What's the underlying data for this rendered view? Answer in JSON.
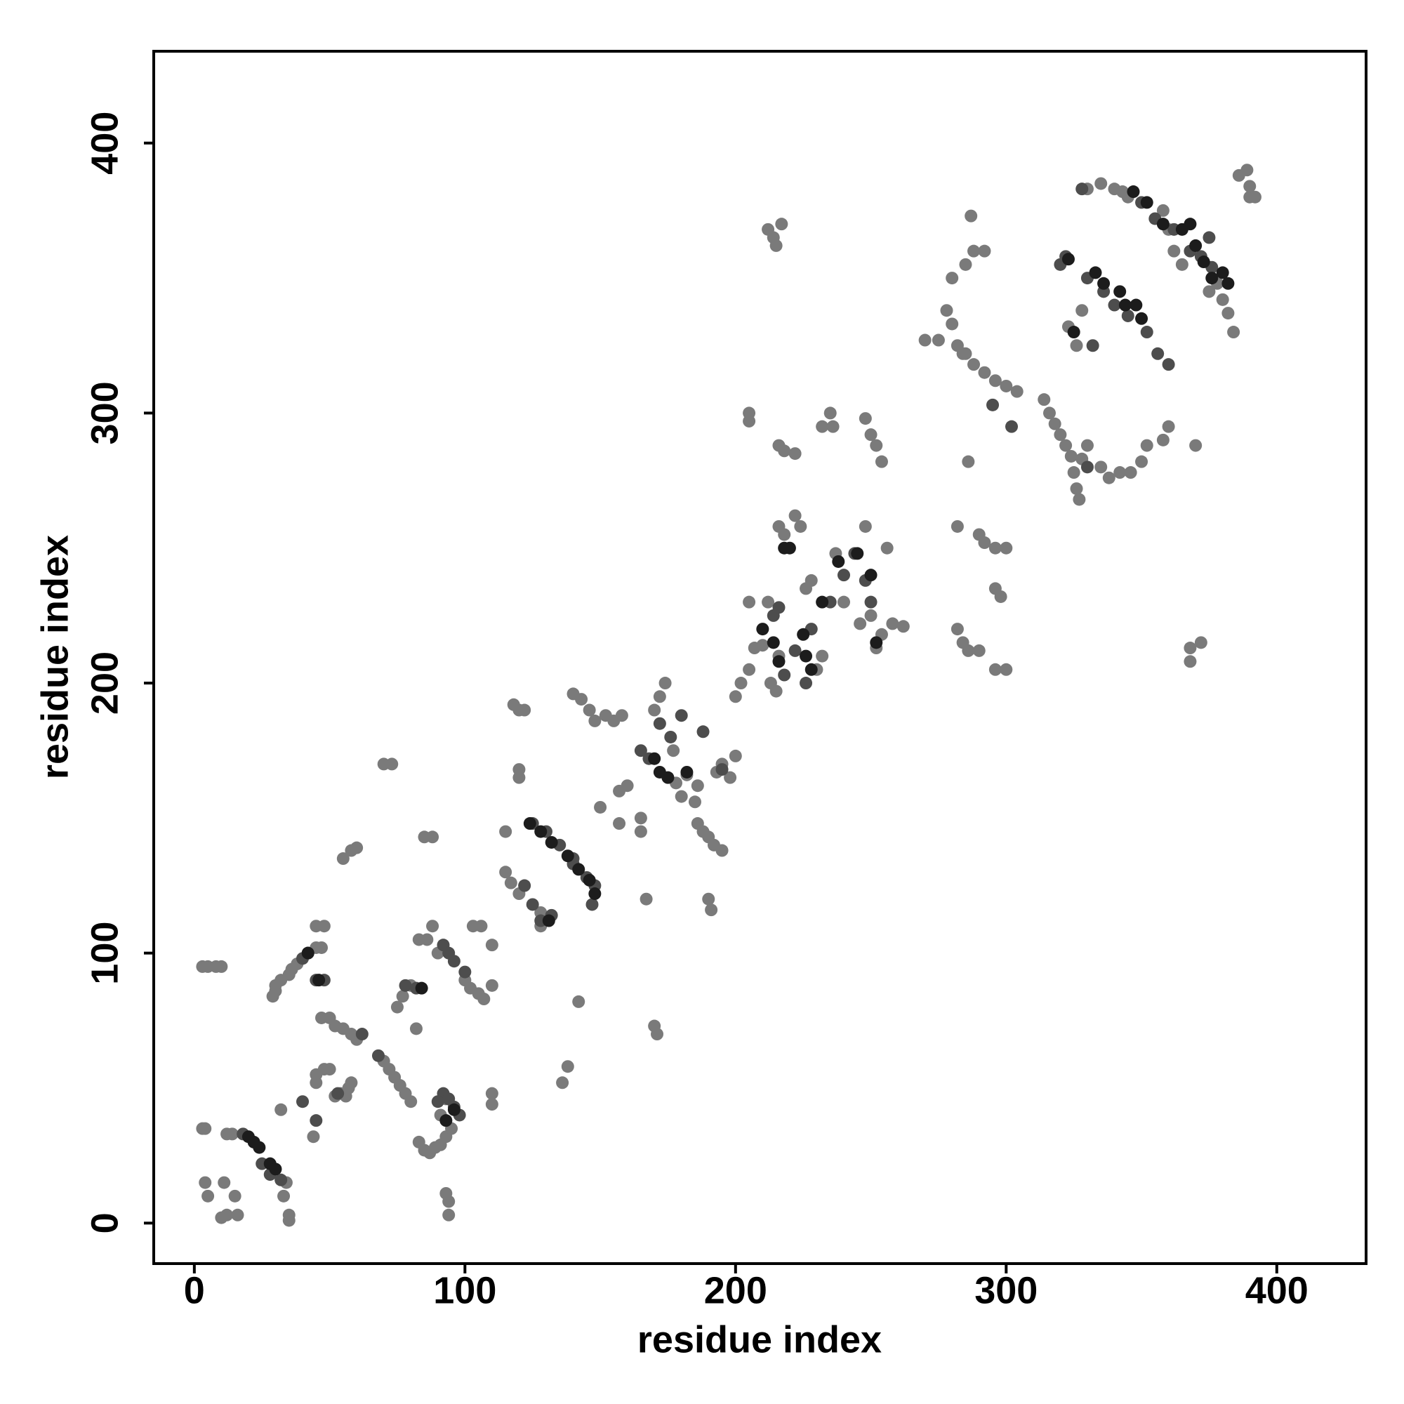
{
  "chart_data": {
    "type": "scatter",
    "x_label": "residue index",
    "y_label": "residue index",
    "xlim": [
      -15,
      433
    ],
    "ylim": [
      -15,
      434
    ],
    "xticks": [
      0,
      100,
      200,
      300,
      400
    ],
    "yticks": [
      0,
      100,
      200,
      300,
      400
    ],
    "grid": false,
    "series": [
      {
        "color": "#7a7a7a",
        "x": [
          3,
          4,
          4,
          5,
          8,
          3,
          5,
          10,
          12,
          14,
          10,
          12,
          16,
          15,
          11,
          34,
          35,
          35,
          33,
          32,
          30,
          30,
          29,
          32,
          35,
          36,
          38,
          42,
          45,
          45,
          48,
          47,
          45,
          45,
          48,
          50,
          52,
          54,
          56,
          57,
          58,
          47,
          50,
          52,
          55,
          58,
          60,
          44,
          55,
          58,
          60,
          70,
          73,
          70,
          72,
          74,
          76,
          78,
          80,
          75,
          77,
          80,
          82,
          83,
          85,
          87,
          89,
          91,
          93,
          95,
          91,
          93,
          94,
          94,
          93,
          83,
          86,
          88,
          90,
          85,
          88,
          100,
          102,
          105,
          107,
          103,
          106,
          110,
          110,
          110,
          110,
          115,
          115,
          117,
          120,
          118,
          120,
          122,
          120,
          120,
          128,
          128,
          136,
          138,
          142,
          140,
          143,
          146,
          148,
          150,
          152,
          155,
          157,
          157,
          160,
          158,
          165,
          165,
          167,
          170,
          171,
          172,
          174,
          170,
          177,
          178,
          180,
          182,
          185,
          186,
          188,
          190,
          192,
          195,
          190,
          191,
          186,
          193,
          195,
          200,
          198,
          200,
          202,
          205,
          207,
          210,
          205,
          205,
          205,
          212,
          213,
          215,
          216,
          212,
          214,
          217,
          215,
          216,
          218,
          222,
          216,
          218,
          222,
          224,
          230,
          232,
          226,
          228,
          232,
          235,
          236,
          240,
          237,
          248,
          246,
          250,
          248,
          250,
          252,
          254,
          252,
          254,
          258,
          256,
          262,
          270,
          275,
          278,
          280,
          282,
          284,
          280,
          285,
          288,
          292,
          287,
          286,
          285,
          288,
          292,
          296,
          300,
          304,
          290,
          292,
          296,
          300,
          282,
          282,
          284,
          286,
          290,
          296,
          298,
          296,
          300,
          314,
          316,
          318,
          320,
          322,
          324,
          325,
          326,
          327,
          328,
          330,
          335,
          338,
          342,
          346,
          350,
          352,
          358,
          360,
          368,
          372,
          368,
          370,
          323,
          326,
          328,
          330,
          335,
          340,
          343,
          345,
          358,
          360,
          362,
          365,
          375,
          378,
          380,
          382,
          384,
          386,
          389,
          390,
          390,
          392
        ],
        "values": [
          35,
          35,
          15,
          10,
          95,
          95,
          95,
          95,
          33,
          33,
          2,
          3,
          3,
          10,
          15,
          15,
          1,
          3,
          10,
          42,
          86,
          88,
          84,
          90,
          92,
          94,
          96,
          100,
          102,
          110,
          110,
          102,
          55,
          52,
          57,
          57,
          47,
          48,
          47,
          50,
          52,
          76,
          76,
          73,
          72,
          70,
          68,
          32,
          135,
          138,
          139,
          170,
          170,
          60,
          57,
          54,
          51,
          48,
          45,
          80,
          84,
          88,
          72,
          30,
          27,
          26,
          28,
          29,
          32,
          35,
          40,
          46,
          8,
          3,
          11,
          105,
          105,
          110,
          100,
          143,
          143,
          90,
          87,
          85,
          83,
          110,
          110,
          103,
          48,
          44,
          88,
          145,
          130,
          126,
          122,
          192,
          190,
          190,
          168,
          165,
          110,
          115,
          52,
          58,
          82,
          196,
          194,
          190,
          186,
          154,
          188,
          186,
          160,
          148,
          162,
          188,
          150,
          145,
          120,
          73,
          70,
          195,
          200,
          190,
          175,
          163,
          158,
          166,
          156,
          148,
          145,
          143,
          140,
          138,
          120,
          116,
          162,
          167,
          170,
          173,
          165,
          195,
          200,
          205,
          213,
          214,
          230,
          300,
          297,
          230,
          200,
          197,
          210,
          368,
          365,
          370,
          362,
          288,
          286,
          285,
          258,
          255,
          262,
          258,
          205,
          210,
          235,
          238,
          295,
          300,
          295,
          230,
          248,
          258,
          222,
          225,
          298,
          292,
          288,
          282,
          213,
          218,
          222,
          250,
          221,
          327,
          327,
          338,
          333,
          325,
          322,
          350,
          355,
          360,
          360,
          373,
          282,
          322,
          318,
          315,
          312,
          310,
          308,
          255,
          252,
          250,
          250,
          258,
          220,
          215,
          212,
          212,
          235,
          232,
          205,
          205,
          305,
          300,
          296,
          292,
          288,
          284,
          278,
          272,
          268,
          283,
          288,
          280,
          276,
          278,
          278,
          282,
          288,
          290,
          295,
          213,
          215,
          208,
          288,
          332,
          325,
          338,
          383,
          385,
          383,
          382,
          380,
          375,
          368,
          360,
          355,
          345,
          348,
          342,
          337,
          330,
          388,
          390,
          380,
          384,
          380
        ]
      },
      {
        "color": "#4d4d4d",
        "x": [
          18,
          25,
          28,
          32,
          40,
          40,
          42,
          45,
          48,
          45,
          53,
          62,
          68,
          78,
          82,
          92,
          94,
          90,
          96,
          98,
          92,
          94,
          96,
          100,
          125,
          130,
          135,
          140,
          145,
          148,
          147,
          122,
          125,
          128,
          132,
          140,
          172,
          165,
          168,
          176,
          180,
          188,
          195,
          214,
          216,
          218,
          222,
          226,
          228,
          235,
          240,
          244,
          248,
          250,
          295,
          302,
          320,
          322,
          330,
          336,
          340,
          345,
          352,
          356,
          360,
          350,
          355,
          362,
          368,
          372,
          376,
          332,
          330,
          328,
          375
        ],
        "values": [
          33,
          22,
          18,
          16,
          45,
          98,
          100,
          90,
          90,
          38,
          48,
          70,
          62,
          88,
          87,
          48,
          46,
          45,
          43,
          40,
          103,
          100,
          97,
          93,
          148,
          145,
          140,
          133,
          128,
          125,
          118,
          125,
          118,
          112,
          114,
          135,
          185,
          175,
          172,
          180,
          188,
          182,
          168,
          225,
          228,
          203,
          212,
          200,
          220,
          230,
          240,
          248,
          238,
          230,
          303,
          295,
          355,
          358,
          350,
          345,
          340,
          336,
          330,
          322,
          318,
          378,
          372,
          368,
          360,
          358,
          354,
          325,
          280,
          383,
          365
        ]
      },
      {
        "color": "#1c1c1c",
        "x": [
          20,
          22,
          24,
          28,
          30,
          42,
          46,
          93,
          96,
          84,
          124,
          128,
          132,
          138,
          142,
          146,
          148,
          131,
          170,
          172,
          175,
          182,
          210,
          214,
          216,
          218,
          220,
          225,
          226,
          228,
          232,
          238,
          245,
          252,
          250,
          323,
          325,
          333,
          336,
          342,
          344,
          348,
          350,
          347,
          352,
          358,
          365,
          370,
          373,
          376,
          380,
          382,
          368
        ],
        "values": [
          32,
          30,
          28,
          22,
          20,
          100,
          90,
          38,
          42,
          87,
          148,
          145,
          141,
          136,
          131,
          127,
          122,
          112,
          172,
          167,
          165,
          167,
          220,
          215,
          208,
          250,
          250,
          218,
          210,
          205,
          230,
          245,
          248,
          215,
          240,
          357,
          330,
          352,
          348,
          345,
          340,
          340,
          335,
          382,
          378,
          370,
          368,
          362,
          356,
          350,
          352,
          348,
          370
        ]
      }
    ]
  }
}
